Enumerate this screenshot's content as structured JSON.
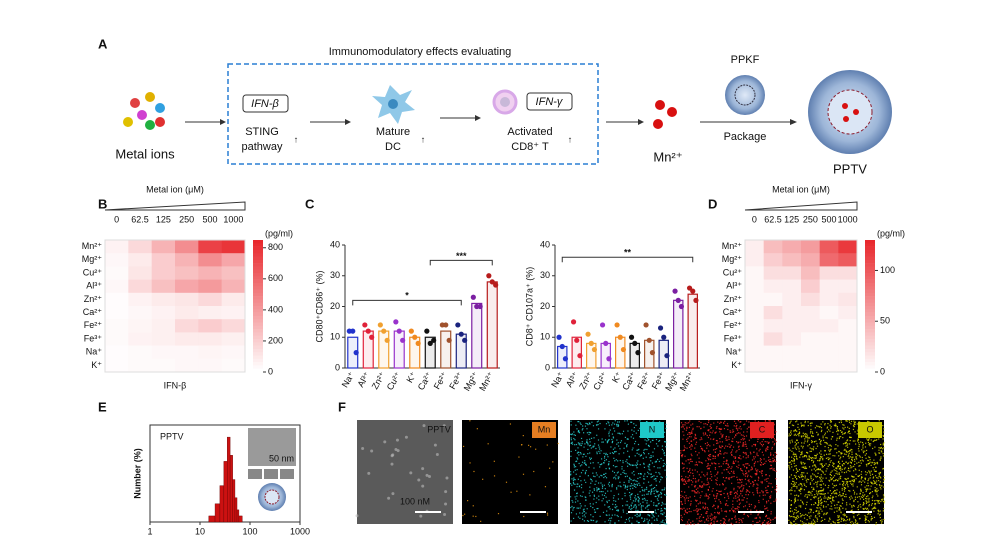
{
  "panel_labels": [
    "A",
    "B",
    "C",
    "D",
    "E",
    "F"
  ],
  "diagram": {
    "title": "Immunomodulatory effects evaluating",
    "metal_ions": "Metal ions",
    "ifn_beta": "IFN-β",
    "sting": [
      "STING",
      "pathway"
    ],
    "dc": [
      "Mature",
      "DC"
    ],
    "ifn_gamma": "IFN-γ",
    "tcell": [
      "Activated",
      "CD8⁺ T"
    ],
    "mn": "Mn²⁺",
    "ppkf": "PPKF",
    "package": "Package",
    "pptv": "PPTV"
  },
  "chart_data": [
    {
      "type": "heatmap",
      "title": "Metal ion (μM)",
      "unit": "(pg/ml)",
      "x_label": "IFN-β",
      "columns": [
        "0",
        "62.5",
        "125",
        "250",
        "500",
        "1000"
      ],
      "rows": [
        "Mn²⁺",
        "Mg²⁺",
        "Cu²⁺",
        "Al³⁺",
        "Zn²⁺",
        "Ca²⁺",
        "Fe²⁺",
        "Fe³⁺",
        "Na⁺",
        "K⁺"
      ],
      "values": [
        [
          50,
          150,
          300,
          450,
          750,
          800
        ],
        [
          30,
          80,
          200,
          300,
          450,
          350
        ],
        [
          20,
          100,
          200,
          250,
          300,
          250
        ],
        [
          30,
          150,
          250,
          350,
          400,
          300
        ],
        [
          10,
          50,
          80,
          100,
          150,
          80
        ],
        [
          10,
          30,
          50,
          80,
          60,
          50
        ],
        [
          20,
          40,
          60,
          150,
          200,
          150
        ],
        [
          20,
          50,
          60,
          80,
          80,
          60
        ],
        [
          10,
          20,
          30,
          30,
          40,
          30
        ],
        [
          10,
          20,
          20,
          30,
          30,
          20
        ]
      ],
      "zlim": [
        0,
        850
      ],
      "zticks": [
        0,
        200,
        400,
        600,
        800
      ],
      "color": "#e8282d"
    },
    {
      "type": "bar",
      "y_label": "CD80⁺CD86⁺ (%)",
      "categories": [
        "Na⁺",
        "Al³⁺",
        "Zn²⁺",
        "Cu²⁺",
        "K⁺",
        "Ca²⁺",
        "Fe²⁺",
        "Fe³⁺",
        "Mg²⁺",
        "Mn²⁺"
      ],
      "colors": [
        "#2233cc",
        "#e0223a",
        "#f0a030",
        "#9933cc",
        "#f08a20",
        "#111111",
        "#a0522d",
        "#1a237e",
        "#7b1fa2",
        "#b71c1c"
      ],
      "values": [
        10,
        12,
        12,
        12,
        10,
        10,
        12,
        11,
        21,
        28
      ],
      "points": [
        [
          12,
          12,
          5
        ],
        [
          14,
          12,
          10
        ],
        [
          14,
          12,
          9
        ],
        [
          15,
          12,
          9
        ],
        [
          12,
          10,
          8
        ],
        [
          12,
          8,
          9
        ],
        [
          14,
          14,
          9
        ],
        [
          14,
          11,
          9
        ],
        [
          23,
          20,
          20
        ],
        [
          30,
          28,
          27
        ]
      ],
      "ylim": [
        0,
        40
      ],
      "yticks": [
        0,
        10,
        20,
        30,
        40
      ],
      "annotations": [
        "*",
        "***"
      ]
    },
    {
      "type": "bar",
      "y_label": "CD8⁺ CD107a⁺ (%)",
      "categories": [
        "Na⁺",
        "Al³⁺",
        "Zn²⁺",
        "Cu²⁺",
        "K⁺",
        "Ca²⁺",
        "Fe²⁺",
        "Fe³⁺",
        "Mg²⁺",
        "Mn²⁺"
      ],
      "colors": [
        "#2233cc",
        "#e0223a",
        "#f0a030",
        "#9933cc",
        "#f08a20",
        "#111111",
        "#a0522d",
        "#1a237e",
        "#7b1fa2",
        "#b71c1c"
      ],
      "values": [
        7,
        10,
        8,
        8,
        10,
        8,
        9,
        9,
        22,
        24
      ],
      "points": [
        [
          10,
          7,
          3
        ],
        [
          15,
          9,
          4
        ],
        [
          11,
          8,
          6
        ],
        [
          14,
          8,
          3
        ],
        [
          14,
          10,
          6
        ],
        [
          10,
          8,
          5
        ],
        [
          14,
          9,
          5
        ],
        [
          13,
          10,
          4
        ],
        [
          25,
          22,
          20
        ],
        [
          26,
          25,
          22
        ]
      ],
      "ylim": [
        0,
        40
      ],
      "yticks": [
        0,
        10,
        20,
        30,
        40
      ],
      "annotations": [
        "**"
      ]
    },
    {
      "type": "heatmap",
      "title": "Metal ion (μM)",
      "unit": "(pg/ml)",
      "x_label": "IFN-γ",
      "columns": [
        "0",
        "62.5",
        "125",
        "250",
        "500",
        "1000"
      ],
      "rows": [
        "Mn²⁺",
        "Mg²⁺",
        "Cu²⁺",
        "Al³⁺",
        "Zn²⁺",
        "Ca²⁺",
        "Fe²⁺",
        "Fe³⁺",
        "Na⁺",
        "K⁺"
      ],
      "values": [
        [
          10,
          40,
          50,
          60,
          100,
          120
        ],
        [
          10,
          30,
          40,
          50,
          90,
          100
        ],
        [
          5,
          20,
          20,
          40,
          20,
          20
        ],
        [
          5,
          10,
          10,
          30,
          10,
          10
        ],
        [
          5,
          5,
          10,
          20,
          10,
          15
        ],
        [
          5,
          20,
          10,
          10,
          5,
          10
        ],
        [
          5,
          10,
          10,
          10,
          10,
          5
        ],
        [
          5,
          20,
          10,
          5,
          5,
          5
        ],
        [
          5,
          5,
          5,
          5,
          5,
          5
        ],
        [
          5,
          5,
          5,
          5,
          5,
          5
        ]
      ],
      "zlim": [
        0,
        130
      ],
      "zticks": [
        0,
        50,
        100
      ],
      "color": "#e8282d"
    },
    {
      "type": "histogram",
      "title": "PPTV",
      "y_label": "Number (%)",
      "bins": [
        15,
        20,
        25,
        30,
        35,
        40,
        45,
        50,
        55,
        60,
        70
      ],
      "counts": [
        2,
        6,
        12,
        20,
        28,
        22,
        14,
        8,
        4,
        2
      ],
      "color": "#cc1111",
      "xlim": [
        1,
        1000
      ],
      "xticks": [
        1,
        10,
        100,
        1000
      ],
      "ylim": [
        0,
        32
      ],
      "log_x": true,
      "inset_scale": "50 nm"
    }
  ],
  "eds": {
    "labels": [
      "PPTV",
      "Mn",
      "N",
      "C",
      "O"
    ],
    "label_colors": [
      "#00000000",
      "#e67e22",
      "#1fc8c8",
      "#e02020",
      "#c8c800"
    ],
    "scale": "100 nM"
  }
}
